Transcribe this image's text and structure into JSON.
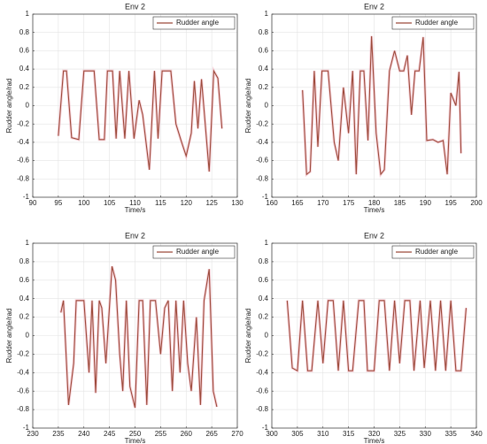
{
  "chart_data": [
    {
      "type": "line",
      "title": "Env 2",
      "xlabel": "Time/s",
      "ylabel": "Rudder angle/rad",
      "x": [
        95,
        96,
        96.6,
        97.6,
        99,
        100,
        102,
        103,
        104,
        104.6,
        105.6,
        106.3,
        107,
        108,
        108.8,
        109.8,
        110.8,
        111.5,
        112.8,
        113.8,
        114.5,
        115.3,
        117,
        118,
        119,
        120,
        121,
        121.6,
        122.3,
        123,
        124.5,
        125.4,
        126.2,
        127
      ],
      "series": [
        {
          "name": "Rudder angle",
          "color": "#9c4a3a",
          "values": [
            -0.33,
            0.38,
            0.38,
            -0.35,
            -0.37,
            0.38,
            0.38,
            -0.37,
            -0.37,
            0.38,
            0.38,
            -0.36,
            0.38,
            -0.36,
            0.38,
            -0.36,
            0.06,
            -0.1,
            -0.7,
            0.38,
            -0.36,
            0.38,
            0.38,
            -0.2,
            -0.38,
            -0.55,
            -0.3,
            0.27,
            -0.25,
            0.29,
            -0.72,
            0.38,
            0.3,
            -0.25
          ]
        }
      ],
      "xlim": [
        90,
        130
      ],
      "xticks": [
        90,
        95,
        100,
        105,
        110,
        115,
        120,
        125,
        130
      ],
      "ylim": [
        -1,
        1
      ],
      "yticks": [
        -1,
        -0.8,
        -0.6,
        -0.4,
        -0.2,
        0,
        0.2,
        0.4,
        0.6,
        0.8,
        1
      ],
      "grid": true,
      "legend": "upper right"
    },
    {
      "type": "line",
      "title": "Env 2",
      "xlabel": "Time/s",
      "ylabel": "Rudder angle/rad",
      "x": [
        166,
        166.8,
        167.5,
        168.3,
        169,
        169.8,
        171,
        172.2,
        173,
        174,
        175,
        175.8,
        176.5,
        177.3,
        178,
        178.8,
        179.5,
        180.4,
        181.3,
        182,
        183,
        184,
        185,
        185.8,
        186.5,
        187.3,
        188,
        188.8,
        189.6,
        190.3,
        191.5,
        192.5,
        193.5,
        194.3,
        195,
        196,
        196.6,
        197
      ],
      "series": [
        {
          "name": "Rudder angle",
          "color": "#9c4a3a",
          "values": [
            0.17,
            -0.75,
            -0.72,
            0.38,
            -0.45,
            0.38,
            0.38,
            -0.4,
            -0.6,
            0.2,
            -0.3,
            0.38,
            -0.75,
            0.38,
            0.38,
            -0.38,
            0.76,
            -0.3,
            -0.75,
            -0.7,
            0.38,
            0.6,
            0.38,
            0.38,
            0.55,
            -0.1,
            0.38,
            0.38,
            0.75,
            -0.38,
            -0.37,
            -0.4,
            -0.38,
            -0.75,
            0.14,
            0.0,
            0.37,
            -0.52
          ]
        }
      ],
      "xlim": [
        160,
        200
      ],
      "xticks": [
        160,
        165,
        170,
        175,
        180,
        185,
        190,
        195,
        200
      ],
      "ylim": [
        -1,
        1
      ],
      "yticks": [
        -1,
        -0.8,
        -0.6,
        -0.4,
        -0.2,
        0,
        0.2,
        0.4,
        0.6,
        0.8,
        1
      ],
      "grid": true,
      "legend": "upper right"
    },
    {
      "type": "line",
      "title": "Env 2",
      "xlabel": "Time/s",
      "ylabel": "Rudder angle/rad",
      "x": [
        235.5,
        236,
        237,
        238,
        238.5,
        240,
        241,
        241.6,
        242.3,
        243,
        243.5,
        244.3,
        245.5,
        246.2,
        247,
        247.6,
        248.3,
        249,
        250,
        250.8,
        251.5,
        252.3,
        253,
        254,
        255,
        255.8,
        256.5,
        257.3,
        258,
        258.8,
        259.5,
        260.3,
        261,
        262,
        262.8,
        263.5,
        264.5,
        265.3,
        266
      ],
      "series": [
        {
          "name": "Rudder angle",
          "color": "#9c4a3a",
          "values": [
            0.25,
            0.38,
            -0.75,
            -0.3,
            0.38,
            0.38,
            -0.4,
            0.38,
            -0.62,
            0.38,
            0.3,
            -0.3,
            0.75,
            0.6,
            -0.2,
            -0.6,
            0.38,
            -0.55,
            -0.78,
            0.38,
            0.38,
            -0.75,
            0.38,
            0.38,
            -0.2,
            0.3,
            0.38,
            -0.6,
            0.38,
            -0.4,
            0.38,
            -0.3,
            -0.6,
            0.2,
            -0.75,
            0.38,
            0.72,
            -0.6,
            -0.77
          ]
        }
      ],
      "xlim": [
        230,
        270
      ],
      "xticks": [
        230,
        235,
        240,
        245,
        250,
        255,
        260,
        265,
        270
      ],
      "ylim": [
        -1,
        1
      ],
      "yticks": [
        -1,
        -0.8,
        -0.6,
        -0.4,
        -0.2,
        0,
        0.2,
        0.4,
        0.6,
        0.8,
        1
      ],
      "grid": true,
      "legend": "upper right"
    },
    {
      "type": "line",
      "title": "Env 2",
      "xlabel": "Time/s",
      "ylabel": "Rudder angle/rad",
      "x": [
        303,
        304,
        305,
        306,
        307,
        307.8,
        309,
        310,
        311,
        312,
        313,
        314,
        315,
        315.8,
        317,
        318,
        318.7,
        320,
        321,
        322,
        323,
        324,
        325,
        326,
        327,
        327.8,
        329,
        329.8,
        331,
        332,
        333,
        334,
        335,
        336,
        337,
        338
      ],
      "series": [
        {
          "name": "Rudder angle",
          "color": "#9c4a3a",
          "values": [
            0.38,
            -0.35,
            -0.38,
            0.38,
            -0.38,
            -0.38,
            0.38,
            -0.3,
            0.38,
            0.38,
            -0.38,
            0.38,
            -0.38,
            -0.38,
            0.38,
            0.38,
            -0.38,
            -0.38,
            0.38,
            0.38,
            -0.38,
            0.38,
            -0.3,
            0.38,
            0.38,
            -0.38,
            0.38,
            -0.35,
            0.38,
            -0.38,
            0.38,
            -0.38,
            0.38,
            -0.38,
            -0.38,
            0.3
          ]
        }
      ],
      "xlim": [
        300,
        340
      ],
      "xticks": [
        300,
        305,
        310,
        315,
        320,
        325,
        330,
        335,
        340
      ],
      "ylim": [
        -1,
        1
      ],
      "yticks": [
        -1,
        -0.8,
        -0.6,
        -0.4,
        -0.2,
        0,
        0.2,
        0.4,
        0.6,
        0.8,
        1
      ],
      "grid": true,
      "legend": "upper right"
    }
  ]
}
